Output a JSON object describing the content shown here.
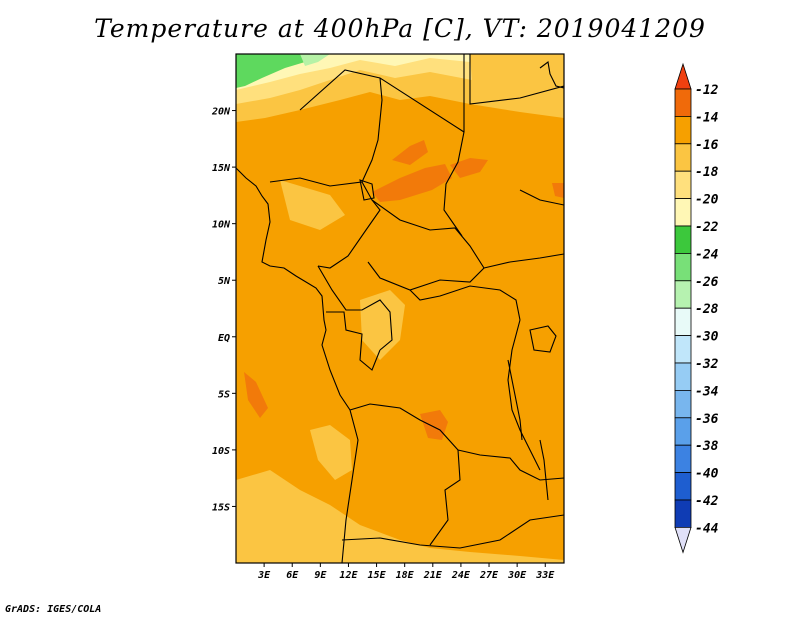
{
  "title": "Temperature at 400hPa [C], VT: 2019041209",
  "credit": "GrADS: IGES/COLA",
  "map": {
    "lon_range": [
      0,
      35
    ],
    "lat_range": [
      -20,
      25
    ],
    "lat_ticks": [
      {
        "value": 20,
        "label": "20N"
      },
      {
        "value": 15,
        "label": "15N"
      },
      {
        "value": 10,
        "label": "10N"
      },
      {
        "value": 5,
        "label": "5N"
      },
      {
        "value": 0,
        "label": "EQ"
      },
      {
        "value": -5,
        "label": "5S"
      },
      {
        "value": -10,
        "label": "10S"
      },
      {
        "value": -15,
        "label": "15S"
      }
    ],
    "lon_ticks": [
      {
        "value": 3,
        "label": "3E"
      },
      {
        "value": 6,
        "label": "6E"
      },
      {
        "value": 9,
        "label": "9E"
      },
      {
        "value": 12,
        "label": "12E"
      },
      {
        "value": 15,
        "label": "15E"
      },
      {
        "value": 18,
        "label": "18E"
      },
      {
        "value": 21,
        "label": "21E"
      },
      {
        "value": 24,
        "label": "24E"
      },
      {
        "value": 27,
        "label": "27E"
      },
      {
        "value": 30,
        "label": "30E"
      },
      {
        "value": 33,
        "label": "33E"
      }
    ],
    "field_colors": {
      "base": "#F6A000",
      "warm": "#F27A0A",
      "cool": "#FBC542",
      "cooler": "#FFE07D",
      "coolest": "#FFF7B5",
      "green": "#5ED95E",
      "light_green": "#B6F2A6"
    }
  },
  "legend": {
    "levels": [
      "-12",
      "-14",
      "-16",
      "-18",
      "-20",
      "-22",
      "-24",
      "-26",
      "-28",
      "-30",
      "-32",
      "-34",
      "-36",
      "-38",
      "-40",
      "-42",
      "-44"
    ],
    "top_arrow_color": "#F04010",
    "bottom_arrow_color": "#E0E0F8",
    "colors": [
      "#F06A0A",
      "#F6A000",
      "#FBC542",
      "#FFE07D",
      "#FFF7B5",
      "#3CC83C",
      "#78E078",
      "#B6F2B0",
      "#E8FAF8",
      "#C0E6FA",
      "#96CCF4",
      "#78B6EE",
      "#5AA0EA",
      "#3C82E2",
      "#1E5ED0",
      "#0F3CB4",
      "#0A1478"
    ]
  }
}
